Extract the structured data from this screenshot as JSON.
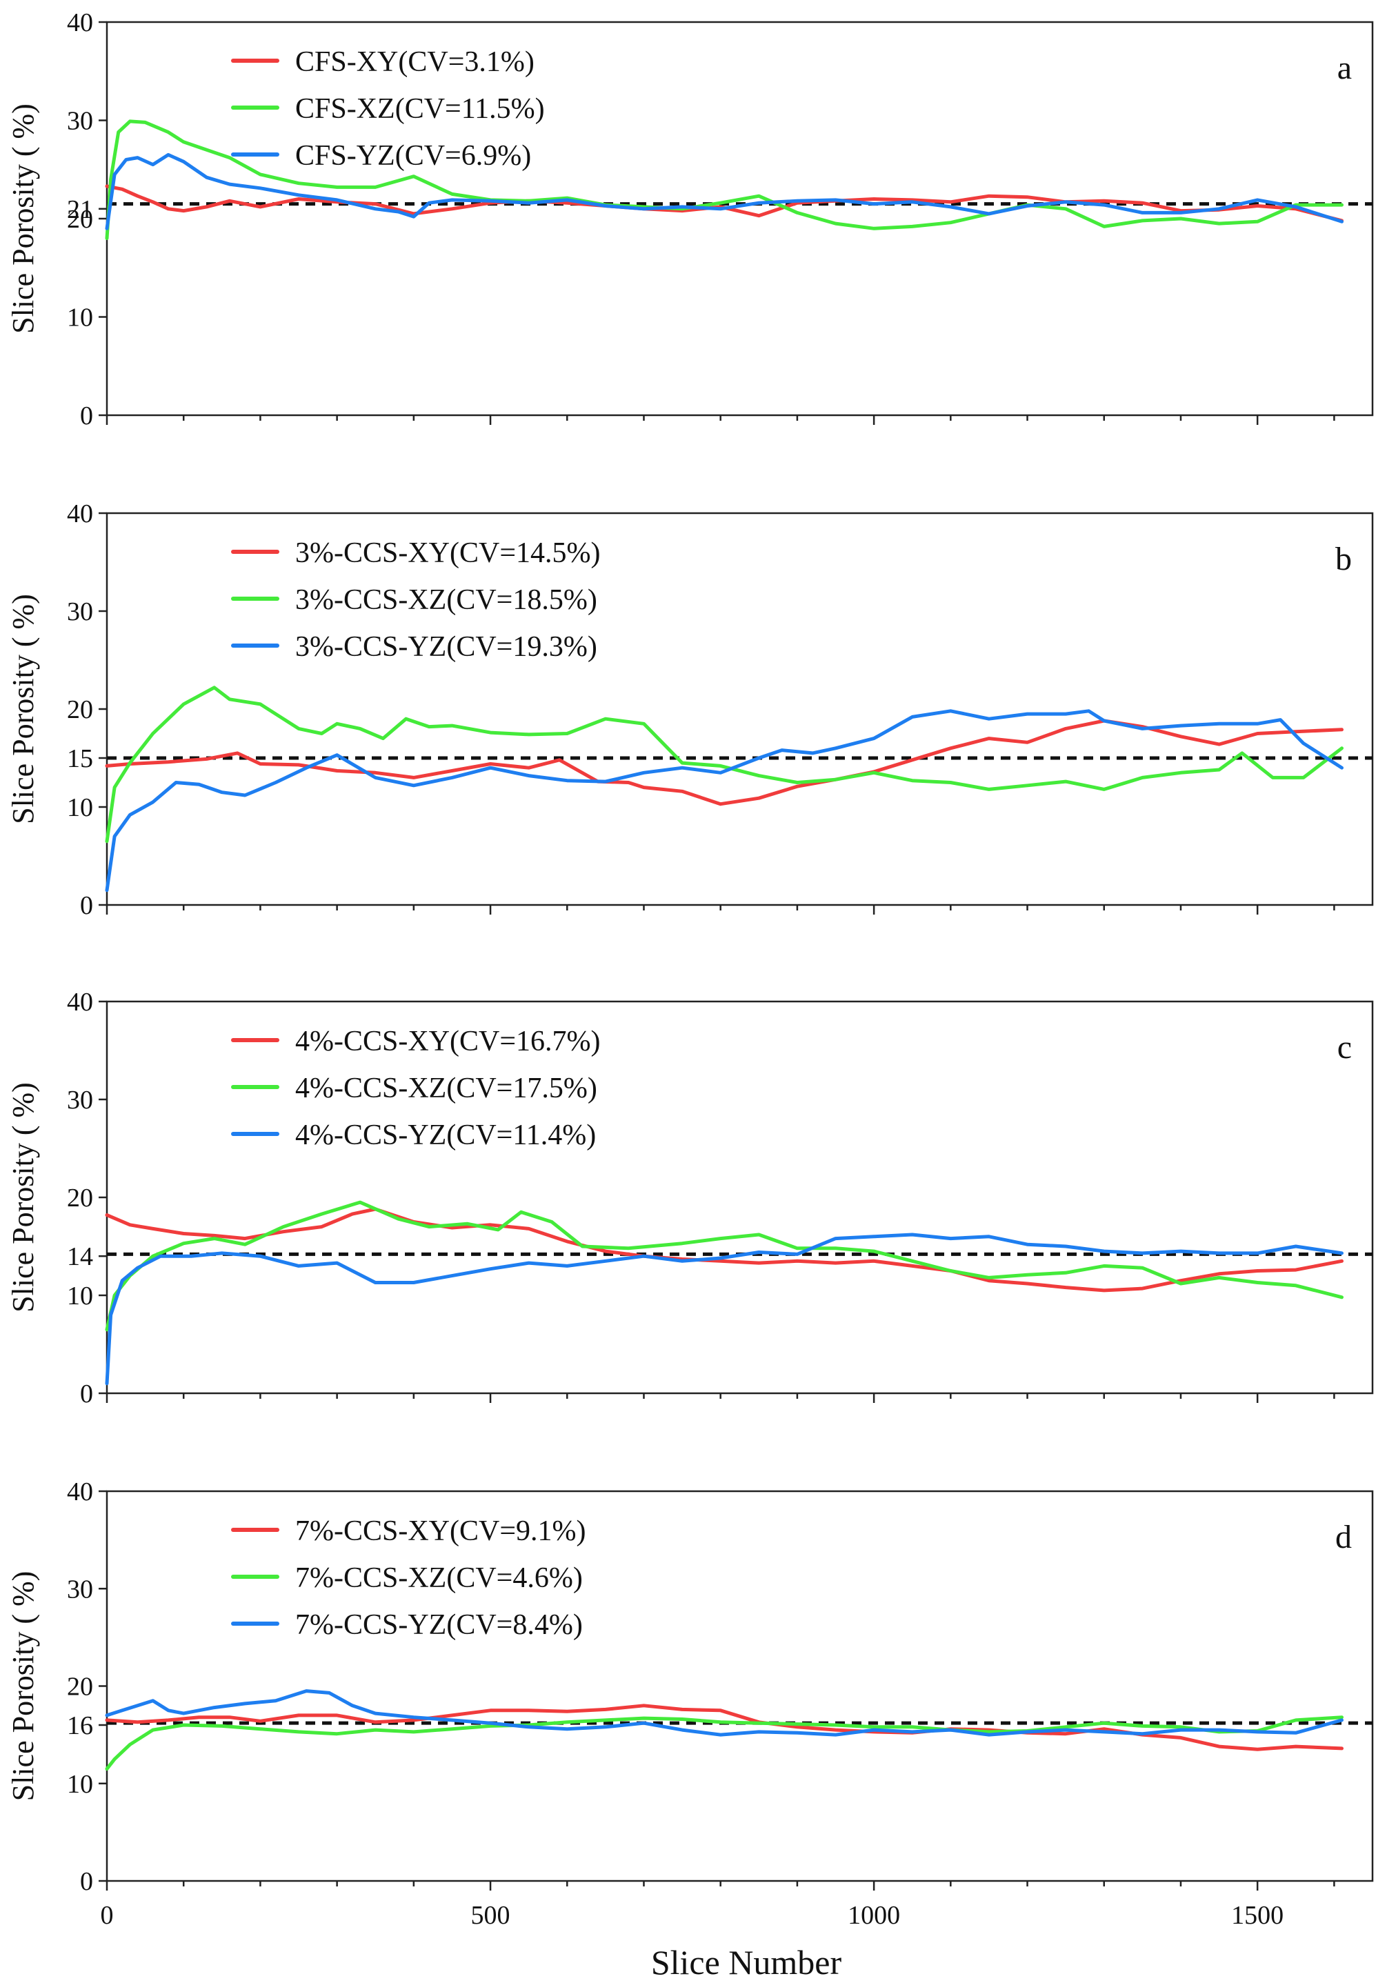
{
  "figure": {
    "x_axis_title": "Slice Number",
    "x_tick_labels": [
      "0",
      "500",
      "1000",
      "1500"
    ]
  },
  "colors": {
    "xy": "#f03c3c",
    "xz": "#44ea3a",
    "yz": "#1e7ef0",
    "mean": "#111111"
  },
  "chart_data": [
    {
      "type": "line",
      "panel": "a",
      "ylabel": "Slice Porosity ( %)",
      "xlabel": "",
      "xlim": [
        0,
        1650
      ],
      "ylim": [
        0,
        40
      ],
      "y_ticks": [
        0,
        10,
        20,
        21,
        30,
        40
      ],
      "mean_line": 21.5,
      "legend_location": "top-left",
      "series": [
        {
          "name": "CFS-XY(CV=3.1%)",
          "key": "xy",
          "x": [
            0,
            20,
            40,
            60,
            80,
            100,
            130,
            160,
            200,
            250,
            300,
            350,
            400,
            450,
            500,
            550,
            600,
            650,
            700,
            750,
            800,
            850,
            900,
            950,
            1000,
            1050,
            1100,
            1150,
            1200,
            1250,
            1300,
            1350,
            1400,
            1450,
            1500,
            1550,
            1610
          ],
          "y": [
            23.3,
            23,
            22.3,
            21.7,
            21,
            20.8,
            21.2,
            21.8,
            21.2,
            22,
            21.7,
            21.5,
            20.5,
            21,
            21.6,
            21.8,
            21.6,
            21.3,
            21,
            20.8,
            21.2,
            20.3,
            21.6,
            21.8,
            22.0,
            21.9,
            21.7,
            22.3,
            22.2,
            21.7,
            21.8,
            21.6,
            20.8,
            20.9,
            21.3,
            21.0,
            19.8
          ]
        },
        {
          "name": "CFS-XZ(CV=11.5%)",
          "key": "xz",
          "x": [
            0,
            5,
            15,
            30,
            50,
            80,
            100,
            130,
            160,
            200,
            250,
            300,
            350,
            400,
            450,
            500,
            550,
            600,
            650,
            700,
            750,
            800,
            850,
            900,
            950,
            1000,
            1050,
            1100,
            1150,
            1200,
            1250,
            1300,
            1350,
            1400,
            1450,
            1500,
            1550,
            1610
          ],
          "y": [
            18,
            24,
            28.8,
            29.9,
            29.8,
            28.8,
            27.8,
            27.0,
            26.2,
            24.5,
            23.6,
            23.2,
            23.2,
            24.3,
            22.5,
            21.9,
            21.8,
            22.1,
            21.4,
            21.2,
            21.0,
            21.6,
            22.3,
            20.6,
            19.5,
            19.0,
            19.2,
            19.6,
            20.5,
            21.4,
            21.0,
            19.2,
            19.8,
            20.0,
            19.5,
            19.7,
            21.4,
            21.4
          ]
        },
        {
          "name": "CFS-YZ(CV=6.9%)",
          "key": "yz",
          "x": [
            0,
            10,
            25,
            40,
            60,
            80,
            100,
            130,
            160,
            200,
            250,
            300,
            350,
            380,
            400,
            420,
            450,
            500,
            550,
            600,
            650,
            700,
            750,
            800,
            850,
            900,
            950,
            1000,
            1050,
            1100,
            1150,
            1200,
            1250,
            1300,
            1350,
            1400,
            1450,
            1500,
            1550,
            1610
          ],
          "y": [
            19,
            24.5,
            26,
            26.2,
            25.5,
            26.5,
            25.8,
            24.2,
            23.5,
            23.1,
            22.4,
            21.9,
            21,
            20.7,
            20.2,
            21.6,
            21.9,
            21.8,
            21.6,
            21.9,
            21.3,
            21,
            21.2,
            21.0,
            21.6,
            21.8,
            21.9,
            21.5,
            21.7,
            21.2,
            20.5,
            21.3,
            21.7,
            21.4,
            20.6,
            20.6,
            21.0,
            21.9,
            21.2,
            19.7
          ]
        }
      ]
    },
    {
      "type": "line",
      "panel": "b",
      "ylabel": "Slice Porosity ( %)",
      "xlabel": "",
      "xlim": [
        0,
        1650
      ],
      "ylim": [
        0,
        40
      ],
      "y_ticks": [
        0,
        10,
        15,
        20,
        30,
        40
      ],
      "mean_line": 15,
      "legend_location": "top-left",
      "series": [
        {
          "name": "3%-CCS-XY(CV=14.5%)",
          "key": "xy",
          "x": [
            0,
            30,
            80,
            130,
            170,
            200,
            250,
            300,
            350,
            400,
            450,
            500,
            550,
            590,
            640,
            680,
            700,
            750,
            800,
            850,
            900,
            950,
            1000,
            1050,
            1100,
            1150,
            1200,
            1250,
            1300,
            1350,
            1400,
            1450,
            1500,
            1550,
            1610
          ],
          "y": [
            14.2,
            14.4,
            14.6,
            14.9,
            15.5,
            14.4,
            14.3,
            13.7,
            13.5,
            13.0,
            13.7,
            14.4,
            14.0,
            14.8,
            12.6,
            12.5,
            12.0,
            11.6,
            10.3,
            10.9,
            12.1,
            12.8,
            13.6,
            14.8,
            16.0,
            17.0,
            16.6,
            18.0,
            18.8,
            18.2,
            17.2,
            16.4,
            17.5,
            17.7,
            17.9
          ]
        },
        {
          "name": "3%-CCS-XZ(CV=18.5%)",
          "key": "xz",
          "x": [
            0,
            10,
            30,
            60,
            100,
            140,
            160,
            200,
            250,
            280,
            300,
            330,
            360,
            390,
            420,
            450,
            500,
            550,
            600,
            650,
            700,
            750,
            800,
            850,
            900,
            950,
            1000,
            1050,
            1100,
            1150,
            1200,
            1250,
            1300,
            1350,
            1400,
            1450,
            1480,
            1520,
            1560,
            1610
          ],
          "y": [
            6.5,
            12,
            14.5,
            17.5,
            20.5,
            22.2,
            21.0,
            20.5,
            18.0,
            17.5,
            18.5,
            18.0,
            17.0,
            19.0,
            18.2,
            18.3,
            17.6,
            17.4,
            17.5,
            19.0,
            18.5,
            14.5,
            14.2,
            13.2,
            12.5,
            12.8,
            13.5,
            12.7,
            12.5,
            11.8,
            12.2,
            12.6,
            11.8,
            13.0,
            13.5,
            13.8,
            15.5,
            13.0,
            13.0,
            16.0
          ]
        },
        {
          "name": "3%-CCS-YZ(CV=19.3%)",
          "key": "yz",
          "x": [
            0,
            10,
            30,
            60,
            90,
            120,
            150,
            180,
            220,
            260,
            300,
            350,
            400,
            450,
            500,
            550,
            600,
            650,
            700,
            750,
            800,
            850,
            880,
            920,
            950,
            1000,
            1050,
            1100,
            1150,
            1200,
            1250,
            1280,
            1300,
            1350,
            1400,
            1450,
            1500,
            1530,
            1560,
            1610
          ],
          "y": [
            1.5,
            7,
            9.2,
            10.5,
            12.5,
            12.3,
            11.5,
            11.2,
            12.5,
            14.0,
            15.3,
            13.0,
            12.2,
            13.0,
            14.0,
            13.2,
            12.7,
            12.6,
            13.5,
            14.0,
            13.5,
            15.0,
            15.8,
            15.5,
            16.0,
            17.0,
            19.2,
            19.8,
            19.0,
            19.5,
            19.5,
            19.8,
            18.8,
            18.0,
            18.3,
            18.5,
            18.5,
            18.9,
            16.5,
            14.0
          ]
        }
      ]
    },
    {
      "type": "line",
      "panel": "c",
      "ylabel": "Slice Porosity ( %)",
      "xlabel": "",
      "xlim": [
        0,
        1650
      ],
      "ylim": [
        0,
        40
      ],
      "y_ticks": [
        0,
        10,
        14,
        20,
        30,
        40
      ],
      "mean_line": 14.2,
      "legend_location": "top-left",
      "series": [
        {
          "name": "4%-CCS-XY(CV=16.7%)",
          "key": "xy",
          "x": [
            0,
            30,
            60,
            100,
            140,
            180,
            230,
            280,
            320,
            350,
            400,
            450,
            500,
            550,
            600,
            650,
            700,
            750,
            800,
            850,
            900,
            950,
            1000,
            1050,
            1100,
            1150,
            1200,
            1250,
            1300,
            1350,
            1400,
            1450,
            1500,
            1550,
            1610
          ],
          "y": [
            18.2,
            17.2,
            16.8,
            16.3,
            16.1,
            15.8,
            16.5,
            17.0,
            18.3,
            18.8,
            17.5,
            16.9,
            17.2,
            16.8,
            15.5,
            14.5,
            14.0,
            13.7,
            13.5,
            13.3,
            13.5,
            13.3,
            13.5,
            13.0,
            12.5,
            11.5,
            11.2,
            10.8,
            10.5,
            10.7,
            11.5,
            12.2,
            12.5,
            12.6,
            13.5
          ]
        },
        {
          "name": "4%-CCS-XZ(CV=17.5%)",
          "key": "xz",
          "x": [
            0,
            10,
            30,
            60,
            100,
            140,
            180,
            230,
            280,
            330,
            380,
            420,
            470,
            510,
            540,
            580,
            620,
            680,
            750,
            800,
            850,
            900,
            950,
            1000,
            1050,
            1100,
            1150,
            1200,
            1250,
            1300,
            1350,
            1400,
            1450,
            1500,
            1550,
            1610
          ],
          "y": [
            6.5,
            10,
            12.0,
            14.0,
            15.3,
            15.8,
            15.2,
            17.0,
            18.3,
            19.5,
            17.8,
            17.0,
            17.3,
            16.7,
            18.5,
            17.5,
            15.0,
            14.8,
            15.3,
            15.8,
            16.2,
            14.8,
            14.8,
            14.5,
            13.5,
            12.5,
            11.8,
            12.1,
            12.3,
            13.0,
            12.8,
            11.2,
            11.8,
            11.3,
            11.0,
            9.8
          ]
        },
        {
          "name": "4%-CCS-YZ(CV=11.4%)",
          "key": "yz",
          "x": [
            0,
            5,
            20,
            40,
            70,
            110,
            150,
            200,
            250,
            300,
            350,
            400,
            450,
            500,
            550,
            600,
            650,
            700,
            750,
            800,
            850,
            900,
            950,
            1000,
            1050,
            1100,
            1150,
            1200,
            1250,
            1300,
            1350,
            1400,
            1450,
            1500,
            1550,
            1610
          ],
          "y": [
            1,
            8,
            11.5,
            12.8,
            14.0,
            14.0,
            14.3,
            14.0,
            13.0,
            13.3,
            11.3,
            11.3,
            12.0,
            12.7,
            13.3,
            13.0,
            13.5,
            14.0,
            13.5,
            13.8,
            14.4,
            14.2,
            15.8,
            16.0,
            16.2,
            15.8,
            16.0,
            15.2,
            15.0,
            14.5,
            14.3,
            14.5,
            14.3,
            14.3,
            15.0,
            14.3
          ]
        }
      ]
    },
    {
      "type": "line",
      "panel": "d",
      "ylabel": "Slice Porosity ( %)",
      "xlabel": "Slice Number",
      "xlim": [
        0,
        1650
      ],
      "ylim": [
        0,
        40
      ],
      "y_ticks": [
        0,
        10,
        16,
        20,
        30,
        40
      ],
      "mean_line": 16.2,
      "legend_location": "top-left",
      "series": [
        {
          "name": "7%-CCS-XY(CV=9.1%)",
          "key": "xy",
          "x": [
            0,
            40,
            80,
            120,
            160,
            200,
            250,
            300,
            350,
            400,
            450,
            500,
            550,
            600,
            650,
            700,
            750,
            800,
            850,
            900,
            950,
            1000,
            1050,
            1100,
            1150,
            1200,
            1250,
            1300,
            1350,
            1400,
            1450,
            1500,
            1550,
            1610
          ],
          "y": [
            16.5,
            16.3,
            16.5,
            16.8,
            16.8,
            16.4,
            17.0,
            17.0,
            16.3,
            16.5,
            17.0,
            17.5,
            17.5,
            17.4,
            17.6,
            18.0,
            17.6,
            17.5,
            16.3,
            15.8,
            15.5,
            15.3,
            15.2,
            15.6,
            15.5,
            15.2,
            15.1,
            15.6,
            15.0,
            14.7,
            13.8,
            13.5,
            13.8,
            13.6
          ]
        },
        {
          "name": "7%-CCS-XZ(CV=4.6%)",
          "key": "xz",
          "x": [
            0,
            10,
            30,
            60,
            100,
            150,
            200,
            250,
            300,
            350,
            400,
            450,
            500,
            550,
            600,
            650,
            700,
            750,
            800,
            850,
            900,
            950,
            1000,
            1050,
            1100,
            1150,
            1200,
            1250,
            1300,
            1350,
            1400,
            1450,
            1500,
            1550,
            1610
          ],
          "y": [
            11.5,
            12.5,
            14.0,
            15.5,
            16.0,
            15.9,
            15.6,
            15.3,
            15.1,
            15.5,
            15.3,
            15.6,
            15.9,
            16.0,
            16.3,
            16.5,
            16.7,
            16.6,
            16.3,
            16.2,
            16.1,
            16.0,
            15.8,
            15.8,
            15.5,
            15.3,
            15.4,
            15.8,
            16.2,
            15.9,
            15.8,
            15.3,
            15.4,
            16.5,
            16.8
          ]
        },
        {
          "name": "7%-CCS-YZ(CV=8.4%)",
          "key": "yz",
          "x": [
            0,
            20,
            40,
            60,
            80,
            100,
            140,
            180,
            220,
            260,
            290,
            320,
            350,
            400,
            450,
            500,
            550,
            600,
            650,
            700,
            750,
            800,
            850,
            900,
            950,
            1000,
            1050,
            1100,
            1150,
            1200,
            1250,
            1300,
            1350,
            1400,
            1450,
            1500,
            1550,
            1610
          ],
          "y": [
            17,
            17.5,
            18.0,
            18.5,
            17.5,
            17.2,
            17.8,
            18.2,
            18.5,
            19.5,
            19.3,
            18.0,
            17.2,
            16.8,
            16.5,
            16.2,
            15.8,
            15.6,
            15.8,
            16.2,
            15.5,
            15.0,
            15.3,
            15.2,
            15.0,
            15.5,
            15.3,
            15.5,
            15.0,
            15.3,
            15.5,
            15.3,
            15.1,
            15.5,
            15.5,
            15.3,
            15.2,
            16.5
          ]
        }
      ]
    }
  ]
}
